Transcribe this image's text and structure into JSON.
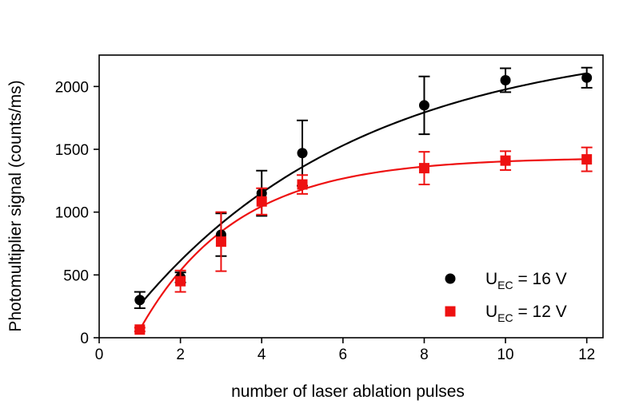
{
  "chart_data": {
    "type": "scatter",
    "xlabel": "number of laser ablation pulses",
    "ylabel": "Photomultiplier signal (counts/ms)",
    "xlim": [
      0,
      12.4
    ],
    "ylim": [
      0,
      2250
    ],
    "xticks": [
      "0",
      "2",
      "4",
      "6",
      "8",
      "10",
      "12"
    ],
    "yticks": [
      "0",
      "500",
      "1000",
      "1500",
      "2000"
    ],
    "grid": false,
    "legend_position": "bottom-right",
    "series": [
      {
        "name": "U_EC = 16 V",
        "legend_main": "U",
        "legend_sub": "EC",
        "legend_rest": " = 16 V",
        "color": "#000000",
        "marker": "circle",
        "x": [
          1,
          2,
          3,
          4,
          5,
          8,
          10,
          12
        ],
        "y": [
          300,
          480,
          820,
          1150,
          1470,
          1850,
          2050,
          2070
        ],
        "err": [
          65,
          40,
          170,
          180,
          260,
          230,
          95,
          80
        ],
        "fit": {
          "a": 2400,
          "k": 0.18,
          "x0": 0.36
        }
      },
      {
        "name": "U_EC = 12 V",
        "legend_main": "U",
        "legend_sub": "EC",
        "legend_rest": " = 12 V",
        "color": "#ee1111",
        "marker": "square",
        "x": [
          1,
          2,
          3,
          4,
          5,
          8,
          10,
          12
        ],
        "y": [
          65,
          450,
          765,
          1085,
          1220,
          1350,
          1410,
          1420
        ],
        "err": [
          15,
          85,
          235,
          105,
          75,
          130,
          75,
          95
        ],
        "fit": {
          "a": 1435,
          "k": 0.42,
          "x0": 0.89
        }
      }
    ]
  }
}
